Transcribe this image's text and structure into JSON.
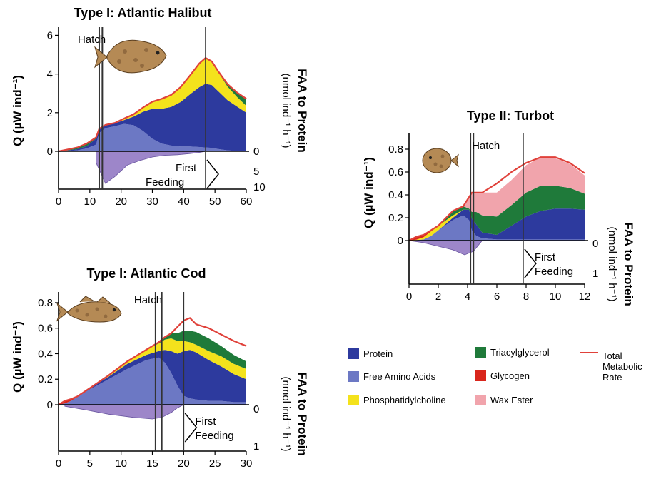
{
  "chart_data": [
    {
      "id": "halibut",
      "type": "area",
      "title": "Type I: Atlantic Halibut",
      "ylabel": "Q (µW ind⁻¹)",
      "y2label": "FAA to Protein",
      "y2label_units": "(nmol ind⁻¹ h⁻¹)",
      "xlim": [
        0,
        60
      ],
      "ylim": [
        -1.9,
        6.2
      ],
      "xticks": [
        "0",
        "10",
        "20",
        "30",
        "40",
        "50",
        "60"
      ],
      "yticks": [
        "0",
        "2",
        "4",
        "6"
      ],
      "y2ticks": [
        "0",
        "5",
        "10"
      ],
      "annotations": {
        "hatch": "Hatch",
        "first_feeding": [
          "First",
          "Feeding"
        ]
      },
      "x": [
        0,
        3,
        6,
        9,
        12,
        13,
        15,
        18,
        21,
        24,
        27,
        30,
        33,
        36,
        39,
        42,
        45,
        47,
        49,
        51,
        54,
        57,
        60
      ],
      "series": [
        {
          "key": "faa",
          "values": [
            0,
            0.02,
            0.05,
            0.15,
            0.35,
            0.95,
            1.2,
            1.3,
            1.42,
            1.35,
            1.05,
            0.65,
            0.4,
            0.3,
            0.25,
            0.25,
            0.22,
            0.2,
            0.18,
            0.12,
            0.05,
            0.02,
            0
          ]
        },
        {
          "key": "protein",
          "values": [
            0,
            0.03,
            0.06,
            0.12,
            0.3,
            0.2,
            0.15,
            0.15,
            0.2,
            0.45,
            1.0,
            1.55,
            1.8,
            2.0,
            2.3,
            2.7,
            3.1,
            3.3,
            3.25,
            3.0,
            2.6,
            2.3,
            2.0
          ]
        },
        {
          "key": "phosphatidylcholine",
          "values": [
            0,
            0,
            0,
            0,
            0,
            0,
            0,
            0,
            0.05,
            0.1,
            0.2,
            0.35,
            0.5,
            0.6,
            0.75,
            0.95,
            1.2,
            1.3,
            1.2,
            1.0,
            0.7,
            0.5,
            0.35
          ]
        },
        {
          "key": "triacylglycerol",
          "values": [
            0,
            0.05,
            0.08,
            0.1,
            0.05,
            0,
            0,
            0,
            0,
            0,
            0,
            0,
            0,
            0,
            0,
            0,
            0,
            0,
            0,
            0,
            0.1,
            0.2,
            0.35
          ]
        },
        {
          "key": "glycogen",
          "values": [
            0,
            0,
            0,
            0,
            0,
            0,
            0,
            0,
            0,
            0,
            0,
            0,
            0,
            0,
            0,
            0,
            0,
            0,
            0,
            0,
            0,
            0,
            0
          ]
        }
      ],
      "faa_to_protein": {
        "x": [
          12,
          15,
          18,
          22,
          26,
          30,
          34,
          38,
          42,
          45,
          47
        ],
        "values": [
          1.0,
          2.8,
          2.2,
          1.2,
          0.8,
          0.5,
          0.35,
          0.3,
          0.2,
          0.1,
          0
        ]
      },
      "total_metabolic_rate": [
        0,
        0.1,
        0.2,
        0.4,
        0.72,
        1.17,
        1.37,
        1.47,
        1.7,
        1.92,
        2.27,
        2.57,
        2.72,
        2.92,
        3.32,
        3.92,
        4.55,
        4.83,
        4.65,
        4.15,
        3.48,
        3.05,
        2.72
      ],
      "hatch_x": [
        13,
        14
      ],
      "first_feeding_x": [
        47
      ]
    },
    {
      "id": "cod",
      "type": "area",
      "title": "Type I: Atlantic Cod",
      "ylabel": "Q (µW ind⁻¹)",
      "y2label": "FAA to Protein",
      "y2label_units": "(nmol ind⁻¹ h⁻¹)",
      "xlim": [
        0,
        30
      ],
      "ylim": [
        -0.35,
        0.85
      ],
      "xticks": [
        "0",
        "5",
        "10",
        "15",
        "20",
        "25",
        "30"
      ],
      "yticks": [
        "0",
        "0.2",
        "0.4",
        "0.6",
        "0.8"
      ],
      "y2ticks": [
        "0",
        "1"
      ],
      "annotations": {
        "hatch": "Hatch",
        "first_feeding": [
          "First",
          "Feeding"
        ]
      },
      "x": [
        0,
        1,
        2,
        3,
        5,
        8,
        11,
        14,
        16,
        17,
        18,
        19,
        20,
        21,
        22,
        24,
        26,
        28,
        30
      ],
      "series": [
        {
          "key": "faa",
          "values": [
            0,
            0.01,
            0.03,
            0.06,
            0.12,
            0.2,
            0.28,
            0.35,
            0.37,
            0.33,
            0.25,
            0.15,
            0.07,
            0.05,
            0.04,
            0.03,
            0.03,
            0.02,
            0.02
          ]
        },
        {
          "key": "protein",
          "values": [
            0,
            0,
            0,
            0,
            0.01,
            0.02,
            0.04,
            0.04,
            0.05,
            0.1,
            0.17,
            0.25,
            0.35,
            0.38,
            0.37,
            0.32,
            0.27,
            0.22,
            0.18
          ]
        },
        {
          "key": "phosphatidylcholine",
          "values": [
            0,
            0,
            0,
            0,
            0,
            0.01,
            0.02,
            0.04,
            0.06,
            0.08,
            0.1,
            0.1,
            0.08,
            0.06,
            0.06,
            0.07,
            0.08,
            0.08,
            0.08
          ]
        },
        {
          "key": "triacylglycerol",
          "values": [
            0,
            0,
            0,
            0,
            0,
            0,
            0,
            0,
            0.01,
            0.02,
            0.04,
            0.06,
            0.08,
            0.09,
            0.1,
            0.1,
            0.08,
            0.07,
            0.06
          ]
        },
        {
          "key": "glycogen",
          "values": [
            0,
            0.02,
            0.015,
            0.005,
            0,
            0,
            0,
            0,
            0,
            0,
            0,
            0,
            0,
            0,
            0,
            0,
            0,
            0,
            0
          ]
        }
      ],
      "faa_to_protein": {
        "x": [
          1,
          4,
          8,
          12,
          15,
          16.5,
          18,
          19,
          20
        ],
        "values": [
          0.05,
          0.15,
          0.3,
          0.4,
          0.45,
          0.4,
          0.25,
          0.1,
          0
        ]
      },
      "total_metabolic_rate": [
        0,
        0.03,
        0.045,
        0.065,
        0.13,
        0.23,
        0.34,
        0.43,
        0.49,
        0.53,
        0.56,
        0.61,
        0.66,
        0.68,
        0.63,
        0.6,
        0.55,
        0.5,
        0.46
      ],
      "hatch_x": [
        15.5,
        16.5
      ],
      "first_feeding_x": [
        20
      ]
    },
    {
      "id": "turbot",
      "type": "area",
      "title": "Type II: Turbot",
      "ylabel": "Q (µW ind⁻¹)",
      "y2label": "FAA to Protein",
      "y2label_units": "(nmol ind⁻¹ h⁻¹)",
      "xlim": [
        0,
        12
      ],
      "ylim": [
        -0.38,
        0.9
      ],
      "xticks": [
        "0",
        "2",
        "4",
        "6",
        "8",
        "10",
        "12"
      ],
      "yticks": [
        "0",
        "0.2",
        "0.4",
        "0.6",
        "0.8"
      ],
      "y2ticks": [
        "0",
        "1"
      ],
      "annotations": {
        "hatch": "Hatch",
        "first_feeding": [
          "First",
          "Feeding"
        ]
      },
      "x": [
        0,
        0.5,
        1,
        1.5,
        2,
        3,
        3.7,
        4.1,
        4.3,
        4.6,
        5,
        6,
        7,
        8,
        9,
        10,
        11,
        12
      ],
      "series": [
        {
          "key": "faa",
          "values": [
            0,
            0.005,
            0.01,
            0.04,
            0.09,
            0.18,
            0.22,
            0.18,
            0.09,
            0.04,
            0.02,
            0.01,
            0.01,
            0.01,
            0.01,
            0.01,
            0.01,
            0.01
          ]
        },
        {
          "key": "protein",
          "values": [
            0,
            0,
            0,
            0,
            0,
            0.02,
            0.05,
            0.09,
            0.1,
            0.1,
            0.05,
            0.04,
            0.12,
            0.2,
            0.25,
            0.27,
            0.27,
            0.26
          ]
        },
        {
          "key": "phosphatidylcholine",
          "values": [
            0,
            0.003,
            0.02,
            0.04,
            0.04,
            0.02,
            0,
            0,
            0,
            0,
            0,
            0,
            0,
            0,
            0,
            0,
            0,
            0
          ]
        },
        {
          "key": "triacylglycerol",
          "values": [
            0,
            0,
            0,
            0,
            0,
            0.04,
            0.03,
            0.01,
            0.06,
            0.11,
            0.15,
            0.16,
            0.18,
            0.21,
            0.22,
            0.2,
            0.18,
            0.14
          ]
        },
        {
          "key": "wax_ester",
          "values": [
            0,
            0,
            0,
            0,
            0,
            0,
            0,
            0.1,
            0.17,
            0.17,
            0.2,
            0.21,
            0.22,
            0.24,
            0.25,
            0.24,
            0.21,
            0.16
          ]
        },
        {
          "key": "glycogen",
          "values": [
            0,
            0.025,
            0.02,
            0.01,
            0,
            0,
            0,
            0,
            0,
            0,
            0,
            0,
            0,
            0,
            0,
            0,
            0,
            0
          ]
        }
      ],
      "faa_to_protein": {
        "x": [
          0,
          1,
          2,
          3,
          3.8,
          4.4,
          5
        ],
        "values": [
          0,
          0.03,
          0.08,
          0.13,
          0.2,
          0.15,
          0
        ]
      },
      "total_metabolic_rate": [
        0,
        0.033,
        0.05,
        0.09,
        0.13,
        0.26,
        0.3,
        0.38,
        0.42,
        0.42,
        0.42,
        0.5,
        0.6,
        0.68,
        0.73,
        0.73,
        0.68,
        0.59
      ],
      "hatch_x": [
        4.2,
        4.4
      ],
      "first_feeding_x": [
        7.8
      ]
    }
  ],
  "legend": {
    "items": [
      {
        "key": "protein",
        "label": "Protein"
      },
      {
        "key": "faa",
        "label": "Free Amino Acids"
      },
      {
        "key": "phosphatidylcholine",
        "label": "Phosphatidylcholine"
      },
      {
        "key": "triacylglycerol",
        "label": "Triacylglycerol"
      },
      {
        "key": "glycogen",
        "label": "Glycogen"
      },
      {
        "key": "wax_ester",
        "label": "Wax Ester"
      }
    ],
    "total_label": [
      "Total",
      "Metabolic",
      "Rate"
    ]
  },
  "colors": {
    "protein": "#2d3a9e",
    "faa": "#6c78c4",
    "phosphatidylcholine": "#f4e21c",
    "triacylglycerol": "#1f7a3a",
    "glycogen": "#d9261c",
    "wax_ester": "#f1a4ac",
    "total": "#e0413a",
    "faa_to_protein": "#9d86c9",
    "fish_body": "#b58a55",
    "fish_spots": "#7a5530"
  }
}
